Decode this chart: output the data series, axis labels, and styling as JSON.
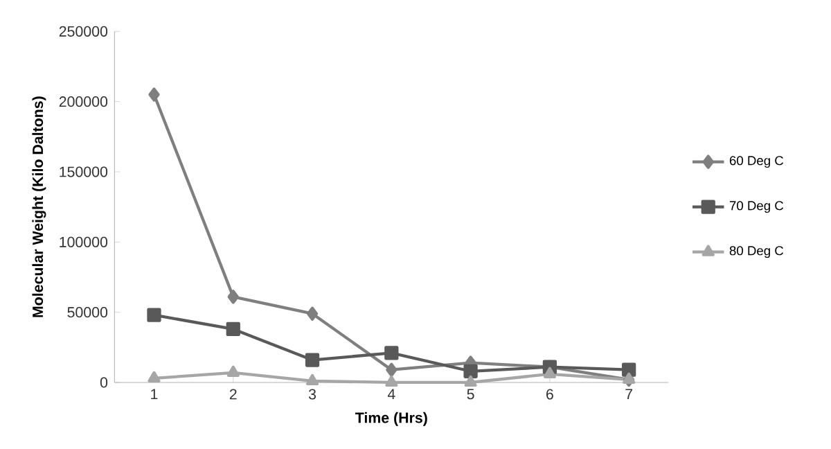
{
  "chart_data": {
    "type": "line",
    "xlabel": "Time (Hrs)",
    "ylabel": "Molecular Weight (Kilo Daltons)",
    "categories": [
      "1",
      "2",
      "3",
      "4",
      "5",
      "6",
      "7"
    ],
    "series": [
      {
        "name": "60 Deg C",
        "color": "#7f7f7f",
        "marker": "diamond",
        "values": [
          205000,
          61000,
          49000,
          9000,
          14000,
          11000,
          2000
        ]
      },
      {
        "name": "70 Deg C",
        "color": "#595959",
        "marker": "square",
        "values": [
          48000,
          38000,
          16000,
          21000,
          8000,
          11000,
          9000
        ]
      },
      {
        "name": "80 Deg C",
        "color": "#a6a6a6",
        "marker": "triangle",
        "values": [
          3000,
          7000,
          1000,
          0,
          0,
          6000,
          2000
        ]
      }
    ],
    "ylim": [
      0,
      250000
    ],
    "yticks": [
      0,
      50000,
      100000,
      150000,
      200000,
      250000
    ],
    "grid": false,
    "legend": "right",
    "line_style": "solid"
  }
}
